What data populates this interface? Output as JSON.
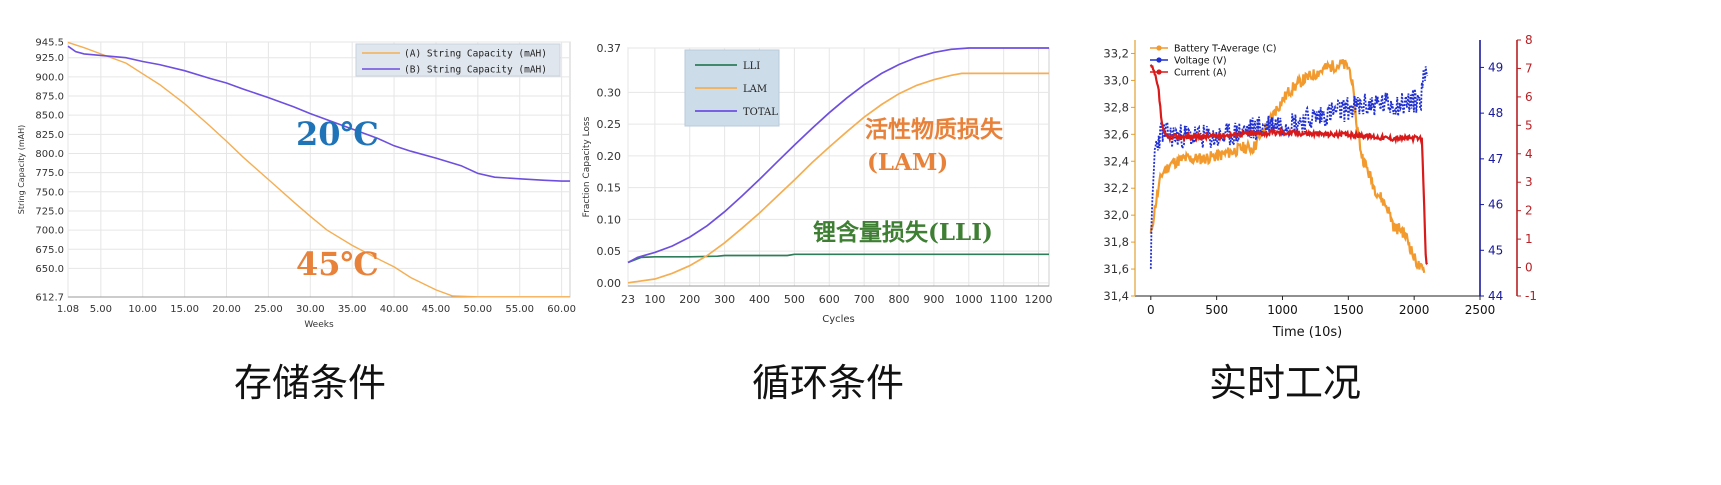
{
  "colors": {
    "orange": "#f5ae52",
    "purple": "#6e4fe0",
    "green": "#2f7d5a",
    "blue_text": "#1f73b7",
    "orange_text": "#e8823a",
    "green_text": "#3e7f33",
    "temp_orange": "#f29a2e",
    "voltage_blue": "#1f2fd1",
    "current_red": "#d91a1a",
    "axis_red": "#b82024",
    "axis_blue": "#1a1a9c"
  },
  "captions": [
    "存储条件",
    "循环条件",
    "实时工况"
  ],
  "chart_data": [
    {
      "type": "line",
      "xlabel": "Weeks",
      "ylabel": "String Capacity (mAH)",
      "x_ticks": [
        "1.08",
        "5.00",
        "10.00",
        "15.00",
        "20.00",
        "25.00",
        "30.00",
        "35.00",
        "40.00",
        "45.00",
        "50.00",
        "55.00",
        "60.00"
      ],
      "y_ticks": [
        "945.5",
        "925.0",
        "900.0",
        "875.0",
        "850.0",
        "825.0",
        "800.0",
        "775.0",
        "750.0",
        "725.0",
        "700.0",
        "675.0",
        "650.0",
        "612.7"
      ],
      "xlim": [
        1.08,
        61
      ],
      "ylim": [
        612.7,
        945.5
      ],
      "grid": true,
      "legend_position": "top-right",
      "series": [
        {
          "name": "(A) String Capacity (mAH)",
          "color": "orange",
          "x": [
            1.08,
            3,
            5,
            8,
            10,
            12,
            15,
            18,
            20,
            22,
            25,
            28,
            30,
            32,
            35,
            38,
            40,
            42,
            45,
            47,
            50,
            55,
            60,
            61
          ],
          "y": [
            945,
            938,
            930,
            918,
            904,
            890,
            865,
            836,
            816,
            795,
            766,
            737,
            718,
            700,
            680,
            663,
            652,
            638,
            622,
            614,
            613,
            613,
            613,
            613
          ]
        },
        {
          "name": "(B) String Capacity (mAH)",
          "color": "purple",
          "x": [
            1.08,
            2,
            3,
            5,
            7,
            8,
            10,
            12,
            15,
            18,
            20,
            22,
            25,
            28,
            30,
            32,
            35,
            38,
            40,
            42,
            45,
            48,
            50,
            52,
            55,
            58,
            60,
            61
          ],
          "y": [
            940,
            933,
            930,
            928,
            926,
            925,
            920,
            916,
            908,
            898,
            892,
            884,
            873,
            861,
            852,
            844,
            832,
            820,
            810,
            803,
            794,
            784,
            774,
            769,
            767,
            765,
            764,
            764
          ]
        }
      ],
      "annotations": [
        {
          "text": "20℃",
          "color": "blue_text"
        },
        {
          "text": "45℃",
          "color": "orange_text"
        }
      ]
    },
    {
      "type": "line",
      "xlabel": "Cycles",
      "ylabel": "Fraction Capacity Loss",
      "x_ticks": [
        "23",
        "100",
        "200",
        "300",
        "400",
        "500",
        "600",
        "700",
        "800",
        "900",
        "1000",
        "1100",
        "1200"
      ],
      "y_ticks": [
        "0.00",
        "0.05",
        "0.10",
        "0.15",
        "0.20",
        "0.25",
        "0.30",
        "0.37"
      ],
      "xlim": [
        23,
        1230
      ],
      "ylim": [
        -0.005,
        0.37
      ],
      "grid": true,
      "legend_position": "top-left",
      "series": [
        {
          "name": "LLI",
          "color": "green",
          "x": [
            23,
            60,
            100,
            200,
            280,
            300,
            400,
            480,
            500,
            600,
            700,
            800,
            900,
            1000,
            1100,
            1200,
            1230
          ],
          "y": [
            0.032,
            0.04,
            0.041,
            0.041,
            0.042,
            0.043,
            0.043,
            0.043,
            0.045,
            0.045,
            0.045,
            0.045,
            0.045,
            0.045,
            0.045,
            0.045,
            0.045
          ]
        },
        {
          "name": "LAM",
          "color": "orange",
          "x": [
            23,
            100,
            150,
            200,
            250,
            300,
            350,
            400,
            450,
            500,
            550,
            600,
            650,
            700,
            750,
            800,
            850,
            900,
            950,
            980,
            1000,
            1100,
            1230
          ],
          "y": [
            0.0,
            0.006,
            0.015,
            0.027,
            0.043,
            0.063,
            0.086,
            0.11,
            0.136,
            0.162,
            0.189,
            0.214,
            0.238,
            0.261,
            0.281,
            0.298,
            0.311,
            0.32,
            0.327,
            0.33,
            0.33,
            0.33,
            0.33
          ]
        },
        {
          "name": "TOTAL",
          "color": "purple",
          "x": [
            23,
            50,
            100,
            150,
            200,
            250,
            300,
            350,
            400,
            450,
            500,
            550,
            600,
            650,
            700,
            750,
            800,
            850,
            900,
            950,
            1000,
            1100,
            1230
          ],
          "y": [
            0.032,
            0.04,
            0.048,
            0.058,
            0.072,
            0.09,
            0.112,
            0.137,
            0.163,
            0.19,
            0.217,
            0.243,
            0.268,
            0.291,
            0.312,
            0.33,
            0.344,
            0.355,
            0.363,
            0.368,
            0.37,
            0.37,
            0.37
          ]
        }
      ],
      "annotations": [
        {
          "text": "活性物质损失",
          "color": "orange_text"
        },
        {
          "text": "(LAM)",
          "color": "orange_text"
        },
        {
          "text": "锂含量损失(LLI)",
          "color": "green_text"
        }
      ]
    },
    {
      "type": "line",
      "xlabel": "Time (10s)",
      "x_ticks": [
        "0",
        "500",
        "1000",
        "1500",
        "2000",
        "2500"
      ],
      "xlim": [
        -120,
        2500
      ],
      "y_left_ticks": [
        "33,2",
        "33,0",
        "32,8",
        "32,6",
        "32,4",
        "32,2",
        "32,0",
        "31,8",
        "31,6",
        "31,4"
      ],
      "y_left_lim": [
        31.4,
        33.3
      ],
      "y_right1_ticks": [
        "49",
        "48",
        "47",
        "46",
        "45",
        "44"
      ],
      "y_right1_lim": [
        44,
        49.6
      ],
      "y_right2_ticks": [
        "8",
        "7",
        "6",
        "5",
        "4",
        "3",
        "2",
        "1",
        "0",
        "-1"
      ],
      "y_right2_lim": [
        -1,
        8
      ],
      "legend_position": "top-left",
      "series": [
        {
          "name": "Battery T-Average (C)",
          "color": "temp_orange",
          "axis": "left",
          "x": [
            0,
            30,
            80,
            150,
            250,
            400,
            550,
            700,
            780,
            850,
            950,
            1050,
            1150,
            1250,
            1350,
            1450,
            1500,
            1520,
            1560,
            1600,
            1700,
            1800,
            1850,
            1900,
            1950,
            2000,
            2050,
            2080
          ],
          "y": [
            31.85,
            32.05,
            32.3,
            32.38,
            32.42,
            32.42,
            32.45,
            32.5,
            32.5,
            32.62,
            32.78,
            32.92,
            33.0,
            33.05,
            33.1,
            33.12,
            33.1,
            33.05,
            32.7,
            32.45,
            32.2,
            32.05,
            31.9,
            31.9,
            31.82,
            31.68,
            31.6,
            31.58
          ]
        },
        {
          "name": "Voltage (V)",
          "color": "voltage_blue",
          "axis": "right1",
          "x": [
            0,
            10,
            30,
            80,
            150,
            300,
            500,
            700,
            900,
            1100,
            1300,
            1500,
            1700,
            1900,
            2050,
            2080,
            2090,
            2100
          ],
          "y": [
            44.8,
            45.8,
            47.2,
            47.6,
            47.5,
            47.5,
            47.45,
            47.6,
            47.75,
            47.8,
            47.95,
            48.1,
            48.2,
            48.2,
            48.3,
            48.9,
            49.0,
            48.8
          ]
        },
        {
          "name": "Current (A)",
          "color": "current_red",
          "axis": "right2",
          "x": [
            0,
            30,
            60,
            80,
            100,
            120,
            200,
            400,
            700,
            1000,
            1300,
            1600,
            1800,
            2000,
            2060,
            2080,
            2090,
            2100
          ],
          "y": [
            7.1,
            6.8,
            6.2,
            5.2,
            4.7,
            4.6,
            4.6,
            4.6,
            4.7,
            4.75,
            4.7,
            4.65,
            4.55,
            4.55,
            4.5,
            1.5,
            0.3,
            0.1
          ]
        }
      ]
    }
  ]
}
